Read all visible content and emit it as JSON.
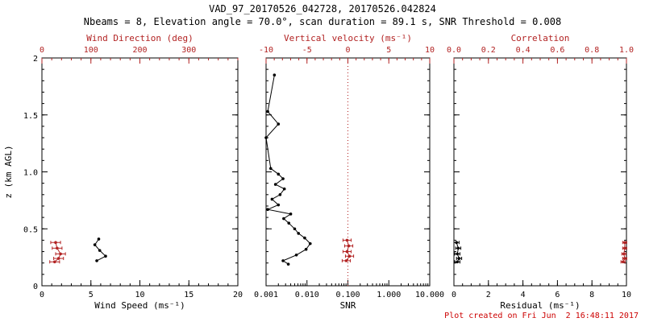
{
  "title": "VAD_97_20170526_042728, 20170526.042824",
  "subtitle": "Nbeams = 8, Elevation angle = 70.0°, scan duration = 89.1 s, SNR Threshold = 0.008",
  "footer": "Plot created on Fri Jun  2 16:48:11 2017",
  "colors": {
    "accent_red": "#b22222",
    "footer_red": "#cc0000",
    "frame": "#000000"
  },
  "chart_data": [
    {
      "type": "scatter",
      "name": "wind",
      "ylabel": "z (km AGL)",
      "ylim": [
        0,
        2
      ],
      "yticks": [
        0,
        0.5,
        1,
        1.5,
        2
      ],
      "ytick_labels": [
        "0",
        "0.5",
        "1.0",
        "1.5",
        "2"
      ],
      "yminor": 0.1,
      "show_ylabels": true,
      "bottom_axis": {
        "label": "Wind Speed (ms⁻¹)",
        "lim": [
          0,
          20
        ],
        "ticks": [
          0,
          5,
          10,
          15,
          20
        ],
        "tick_labels": [
          "0",
          "5",
          "10",
          "15",
          "20"
        ],
        "minor": 1,
        "color": "#000000"
      },
      "top_axis": {
        "label": "Wind Direction (deg)",
        "lim": [
          0,
          400
        ],
        "ticks": [
          0,
          100,
          200,
          300
        ],
        "tick_labels": [
          "0",
          "100",
          "200",
          "300"
        ],
        "minor": 20,
        "color": "#b22222"
      },
      "series": [
        {
          "name": "wind-direction",
          "axis": "top",
          "color": "#b22222",
          "xerr": 10,
          "points": [
            [
              0.38,
              28
            ],
            [
              0.33,
              31
            ],
            [
              0.28,
              38
            ],
            [
              0.24,
              34
            ],
            [
              0.21,
              26
            ]
          ]
        },
        {
          "name": "wind-speed",
          "axis": "bottom",
          "color": "#000000",
          "points": [
            [
              0.41,
              5.8
            ],
            [
              0.36,
              5.4
            ],
            [
              0.31,
              5.9
            ],
            [
              0.26,
              6.5
            ],
            [
              0.22,
              5.6
            ]
          ]
        }
      ]
    },
    {
      "type": "scatter",
      "name": "snr",
      "ylabel": "",
      "ylim": [
        0,
        2
      ],
      "yticks": [
        0,
        0.5,
        1,
        1.5,
        2
      ],
      "ytick_labels": [
        "0",
        "0.5",
        "1.0",
        "1.5",
        "2"
      ],
      "yminor": 0.1,
      "show_ylabels": false,
      "bottom_axis": {
        "label": "SNR",
        "scale": "log",
        "lim": [
          0.001,
          10
        ],
        "ticks": [
          0.001,
          0.01,
          0.1,
          1,
          10
        ],
        "tick_labels": [
          "0.001",
          "0.010",
          "0.100",
          "1.000",
          "10.000"
        ],
        "color": "#000000"
      },
      "top_axis": {
        "label": "Vertical velocity (ms⁻¹)",
        "lim": [
          -10,
          10
        ],
        "ticks": [
          -10,
          -5,
          0,
          5,
          10
        ],
        "tick_labels": [
          "-10",
          "-5",
          "0",
          "5",
          "10"
        ],
        "minor": 1,
        "color": "#b22222"
      },
      "ref_line": {
        "axis": "top",
        "value": 0,
        "color": "#b22222"
      },
      "series": [
        {
          "name": "snr-profile",
          "axis": "bottom",
          "color": "#000000",
          "points": [
            [
              1.85,
              0.0016
            ],
            [
              1.53,
              0.0011
            ],
            [
              1.42,
              0.002
            ],
            [
              1.3,
              0.001
            ],
            [
              1.03,
              0.0013
            ],
            [
              0.98,
              0.002
            ],
            [
              0.94,
              0.0026
            ],
            [
              0.89,
              0.0017
            ],
            [
              0.85,
              0.0028
            ],
            [
              0.8,
              0.0022
            ],
            [
              0.76,
              0.0014
            ],
            [
              0.71,
              0.002
            ],
            [
              0.67,
              0.0011
            ],
            [
              0.63,
              0.004
            ],
            [
              0.59,
              0.0027
            ],
            [
              0.55,
              0.0036
            ],
            [
              0.5,
              0.005
            ],
            [
              0.46,
              0.0062
            ],
            [
              0.42,
              0.0088
            ],
            [
              0.37,
              0.012
            ],
            [
              0.32,
              0.0095
            ],
            [
              0.27,
              0.0055
            ],
            [
              0.22,
              0.0026
            ],
            [
              0.19,
              0.0035
            ]
          ]
        },
        {
          "name": "vertical-velocity",
          "axis": "top",
          "color": "#b22222",
          "xerr": 0.5,
          "points": [
            [
              0.4,
              -0.1
            ],
            [
              0.35,
              0.1
            ],
            [
              0.3,
              -0.1
            ],
            [
              0.26,
              0.2
            ],
            [
              0.22,
              -0.2
            ]
          ]
        }
      ]
    },
    {
      "type": "scatter",
      "name": "residual",
      "ylabel": "",
      "ylim": [
        0,
        2
      ],
      "yticks": [
        0,
        0.5,
        1,
        1.5,
        2
      ],
      "ytick_labels": [
        "0",
        "0.5",
        "1.0",
        "1.5",
        "2"
      ],
      "yminor": 0.1,
      "show_ylabels": false,
      "bottom_axis": {
        "label": "Residual (ms⁻¹)",
        "lim": [
          0,
          10
        ],
        "ticks": [
          0,
          2,
          4,
          6,
          8,
          10
        ],
        "tick_labels": [
          "0",
          "2",
          "4",
          "6",
          "8",
          "10"
        ],
        "minor": 0.5,
        "color": "#000000"
      },
      "top_axis": {
        "label": "Correlation",
        "lim": [
          0,
          1
        ],
        "ticks": [
          0,
          0.2,
          0.4,
          0.6,
          0.8,
          1
        ],
        "tick_labels": [
          "0.0",
          "0.2",
          "0.4",
          "0.6",
          "0.8",
          "1.0"
        ],
        "minor": 0.05,
        "color": "#b22222"
      },
      "series": [
        {
          "name": "residual",
          "axis": "bottom",
          "color": "#000000",
          "xerr": 0.15,
          "points": [
            [
              0.38,
              0.15
            ],
            [
              0.33,
              0.25
            ],
            [
              0.28,
              0.2
            ],
            [
              0.24,
              0.3
            ],
            [
              0.21,
              0.2
            ]
          ]
        },
        {
          "name": "correlation",
          "axis": "top",
          "color": "#b22222",
          "xerr": 0.012,
          "points": [
            [
              0.38,
              0.99
            ],
            [
              0.33,
              0.99
            ],
            [
              0.28,
              0.985
            ],
            [
              0.24,
              0.99
            ],
            [
              0.21,
              0.98
            ]
          ]
        }
      ]
    }
  ]
}
